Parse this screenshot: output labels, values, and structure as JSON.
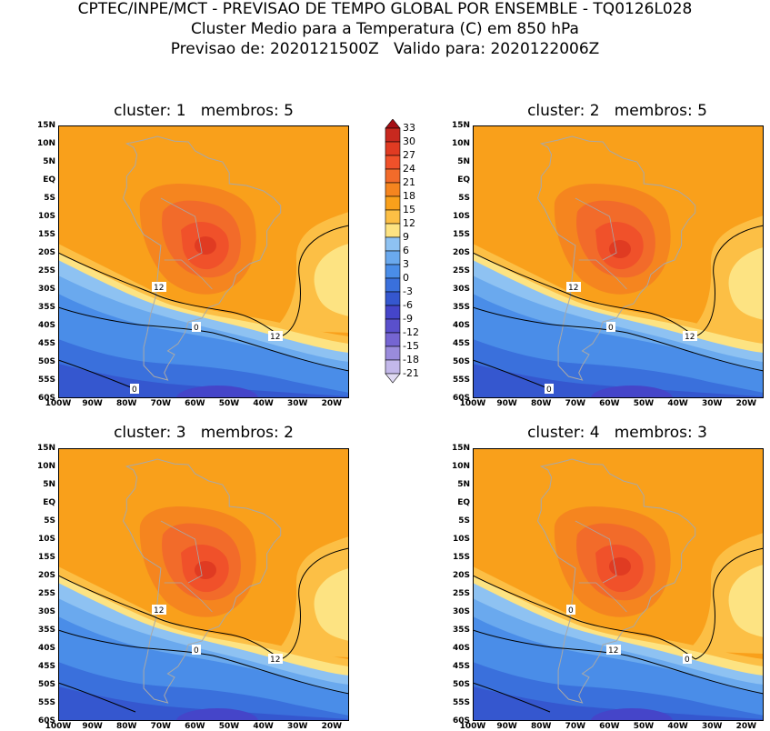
{
  "header": {
    "line1": "CPTEC/INPE/MCT - PREVISAO DE TEMPO GLOBAL POR ENSEMBLE - TQ0126L028",
    "line2": "Cluster Medio para a Temperatura (C) em 850 hPa",
    "line3": "Previsao de: 2020121500Z   Valido para: 2020122006Z"
  },
  "panels": [
    {
      "title": "cluster: 1   membros: 5",
      "contour_labels": [
        "12",
        "0",
        "12",
        "0"
      ]
    },
    {
      "title": "cluster: 2   membros: 5",
      "contour_labels": [
        "12",
        "0",
        "12",
        "0"
      ]
    },
    {
      "title": "cluster: 3   membros: 2",
      "contour_labels": [
        "12",
        "0",
        "12"
      ]
    },
    {
      "title": "cluster: 4   membros: 3",
      "contour_labels": [
        "0",
        "12",
        "0"
      ]
    }
  ],
  "lat_labels": [
    "15N",
    "10N",
    "5N",
    "EQ",
    "5S",
    "10S",
    "15S",
    "20S",
    "25S",
    "30S",
    "35S",
    "40S",
    "45S",
    "50S",
    "55S",
    "60S"
  ],
  "lon_labels": [
    "100W",
    "90W",
    "80W",
    "70W",
    "60W",
    "50W",
    "40W",
    "30W",
    "20W"
  ],
  "colorbar": {
    "labels": [
      "33",
      "30",
      "27",
      "24",
      "21",
      "18",
      "15",
      "12",
      "9",
      "6",
      "3",
      "0",
      "-3",
      "-6",
      "-9",
      "-12",
      "-15",
      "-18",
      "-21"
    ],
    "colors": [
      "#a50f15",
      "#c8291f",
      "#e03b22",
      "#f0512a",
      "#f26b2a",
      "#f5851f",
      "#f9a01b",
      "#fcbf45",
      "#fde382",
      "#8ec2f2",
      "#6aa9ee",
      "#4a8de8",
      "#3a70dc",
      "#3557cf",
      "#4545c9",
      "#5a50cc",
      "#7565d2",
      "#9a8bdc",
      "#c3b8ea",
      "#e0daf3"
    ]
  }
}
